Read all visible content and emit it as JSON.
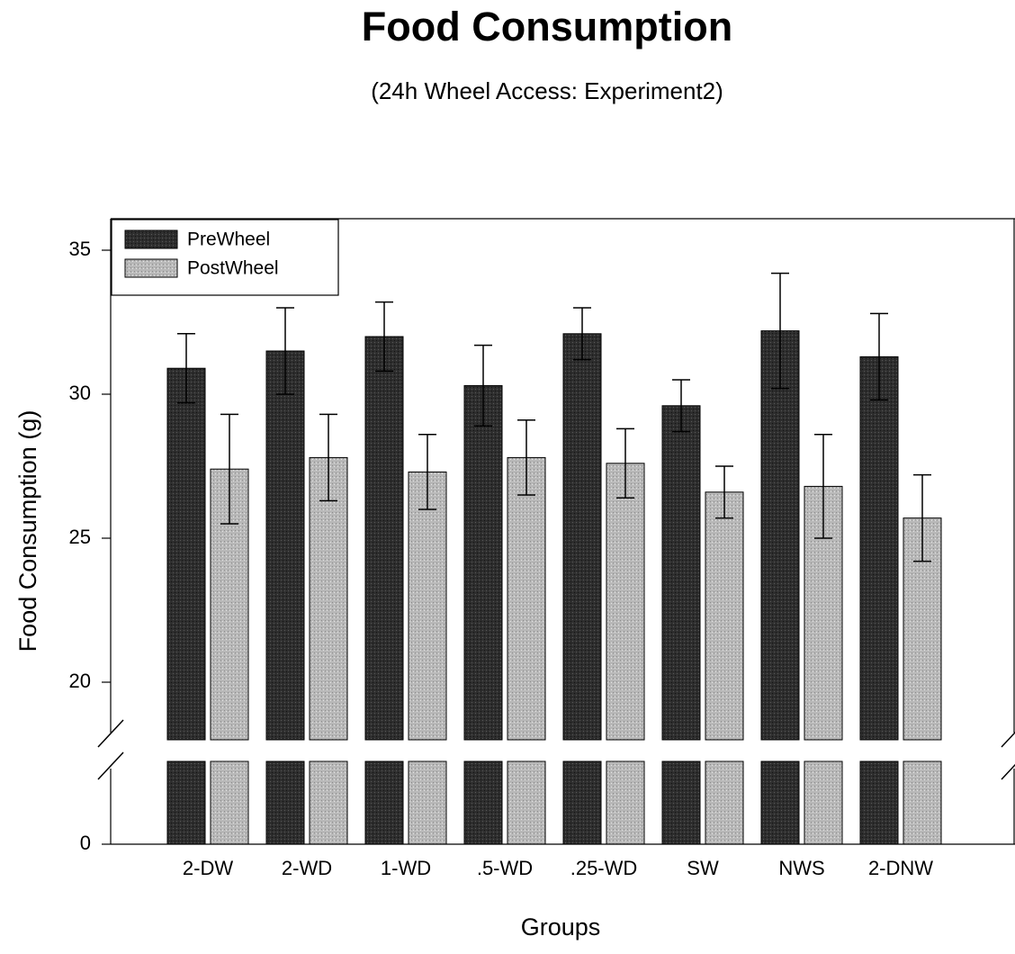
{
  "chart_data": {
    "type": "bar",
    "title": "Food Consumption",
    "subtitle": "(24h Wheel Access: Experiment2)",
    "xlabel": "Groups",
    "ylabel": "Food Consumption (g)",
    "categories": [
      "2-DW",
      "2-WD",
      "1-WD",
      ".5-WD",
      ".25-WD",
      "SW",
      "NWS",
      "2-DNW"
    ],
    "series": [
      {
        "name": "PreWheel",
        "values": [
          30.9,
          31.5,
          32.0,
          30.3,
          32.1,
          29.6,
          32.2,
          31.3
        ],
        "error": [
          1.2,
          1.5,
          1.2,
          1.4,
          0.9,
          0.9,
          2.0,
          1.5
        ]
      },
      {
        "name": "PostWheel",
        "values": [
          27.4,
          27.8,
          27.3,
          27.8,
          27.6,
          26.6,
          26.8,
          25.7
        ],
        "error": [
          1.9,
          1.5,
          1.3,
          1.3,
          1.2,
          0.9,
          1.8,
          1.5
        ]
      }
    ],
    "y_ticks": [
      0,
      20,
      25,
      30,
      35
    ],
    "y_axis_break": [
      0,
      18
    ],
    "ylim": [
      18,
      36
    ],
    "legend_position": "top-left",
    "grid": false,
    "colors": {
      "PreWheel": "#2e2e2e",
      "PostWheel": "#b4b4b4"
    }
  }
}
